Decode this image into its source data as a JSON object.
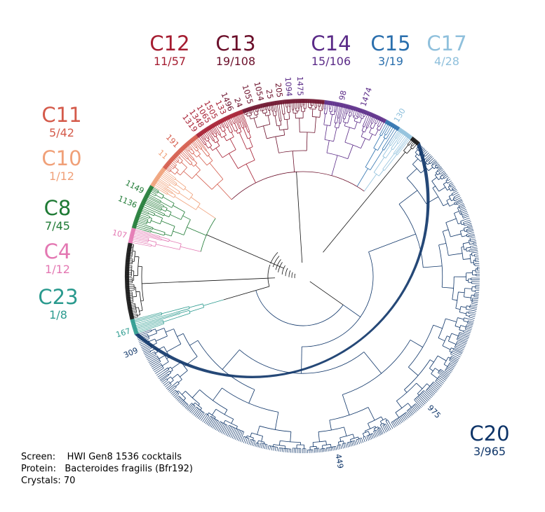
{
  "clusters": [
    {
      "id": "c12",
      "name": "C12",
      "count": "11/57",
      "color": "#a51c30"
    },
    {
      "id": "c13",
      "name": "C13",
      "count": "19/108",
      "color": "#6b0f2a"
    },
    {
      "id": "c14",
      "name": "C14",
      "count": "15/106",
      "color": "#5a2a87"
    },
    {
      "id": "c15",
      "name": "C15",
      "count": "3/19",
      "color": "#2a6fad"
    },
    {
      "id": "c17",
      "name": "C17",
      "count": "4/28",
      "color": "#8fc0dc"
    },
    {
      "id": "c11",
      "name": "C11",
      "count": "5/42",
      "color": "#d45a4a"
    },
    {
      "id": "c10",
      "name": "C10",
      "count": "1/12",
      "color": "#f0a078"
    },
    {
      "id": "c8",
      "name": "C8",
      "count": "7/45",
      "color": "#1e7a34"
    },
    {
      "id": "c4",
      "name": "C4",
      "count": "1/12",
      "color": "#e377b2"
    },
    {
      "id": "c23",
      "name": "C23",
      "count": "1/8",
      "color": "#2a9a8e"
    },
    {
      "id": "c20",
      "name": "C20",
      "count": "3/965",
      "color": "#0d3468"
    }
  ],
  "leaf_labels": [
    {
      "text": "1319",
      "color": "#a51c30"
    },
    {
      "text": "1348",
      "color": "#a51c30"
    },
    {
      "text": "1065",
      "color": "#a51c30"
    },
    {
      "text": "1505",
      "color": "#a51c30"
    },
    {
      "text": "133",
      "color": "#a51c30"
    },
    {
      "text": "1496",
      "color": "#6b0f2a"
    },
    {
      "text": "24",
      "color": "#6b0f2a"
    },
    {
      "text": "1055",
      "color": "#6b0f2a"
    },
    {
      "text": "1054",
      "color": "#6b0f2a"
    },
    {
      "text": "25",
      "color": "#6b0f2a"
    },
    {
      "text": "205",
      "color": "#6b0f2a"
    },
    {
      "text": "1094",
      "color": "#5a2a87"
    },
    {
      "text": "1475",
      "color": "#5a2a87"
    },
    {
      "text": "98",
      "color": "#5a2a87"
    },
    {
      "text": "1474",
      "color": "#5a2a87"
    },
    {
      "text": "130",
      "color": "#8fc0dc"
    },
    {
      "text": "191",
      "color": "#d45a4a"
    },
    {
      "text": "11",
      "color": "#f0a078"
    },
    {
      "text": "1149",
      "color": "#1e7a34"
    },
    {
      "text": "1136",
      "color": "#1e7a34"
    },
    {
      "text": "107",
      "color": "#e377b2"
    },
    {
      "text": "167",
      "color": "#2a9a8e"
    },
    {
      "text": "309",
      "color": "#0d3468"
    },
    {
      "text": "975",
      "color": "#0d3468"
    },
    {
      "text": "449",
      "color": "#0d3468"
    }
  ],
  "info": {
    "screen_label": "Screen:",
    "screen_value": "HWI Gen8 1536 cocktails",
    "protein_label": "Protein:",
    "protein_value": "Bacteroides fragilis (Bfr192)",
    "crystals_label": "Crystals:",
    "crystals_value": "70"
  }
}
